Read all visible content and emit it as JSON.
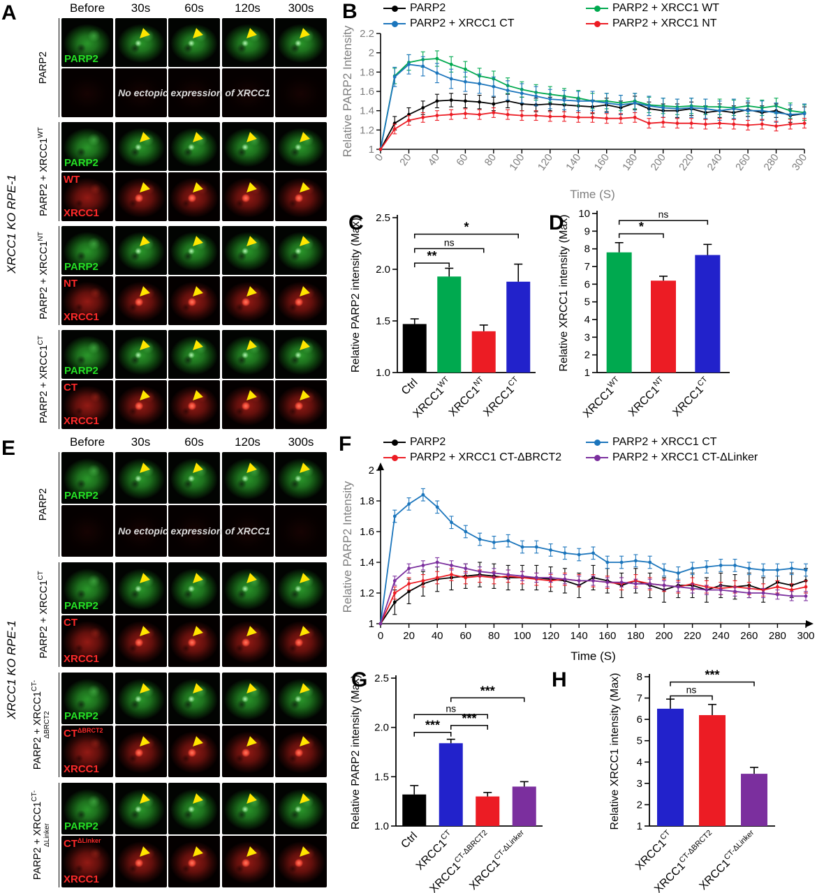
{
  "letters": {
    "A": "A",
    "B": "B",
    "C": "C",
    "D": "D",
    "E": "E",
    "F": "F",
    "G": "G",
    "H": "H"
  },
  "colors": {
    "black": "#000000",
    "green": "#00a94f",
    "red": "#ec1c24",
    "blue": "#1b75bc",
    "blue_bar": "#2222cb",
    "purple": "#7b2f9e",
    "axis_gray": "#7f7f7f",
    "arrow_yellow": "#ffe600"
  },
  "microscopy_columns": [
    "Before",
    "30s",
    "60s",
    "120s",
    "300s"
  ],
  "panelA": {
    "side_label": "XRCC1 KO RPE-1",
    "groups": [
      {
        "label": {
          "base": "PARP2",
          "sup": ""
        },
        "rows": [
          {
            "kind": "green",
            "tag": "PARP2",
            "arrows": [
              0,
              1,
              1,
              1,
              1
            ]
          },
          {
            "kind": "dark",
            "message": "No ectopic expression of XRCC1"
          }
        ]
      },
      {
        "label": {
          "base": "PARP2 + XRCC1",
          "sup": "WT"
        },
        "rows": [
          {
            "kind": "green",
            "tag": "PARP2",
            "arrows": [
              0,
              1,
              1,
              1,
              1
            ]
          },
          {
            "kind": "red",
            "tag_top": {
              "text": "WT",
              "sup": ""
            },
            "tag_bottom": "XRCC1",
            "arrows": [
              0,
              1,
              1,
              1,
              1
            ]
          }
        ]
      },
      {
        "label": {
          "base": "PARP2 + XRCC1",
          "sup": "NT"
        },
        "rows": [
          {
            "kind": "green",
            "tag": "PARP2",
            "arrows": [
              0,
              1,
              1,
              1,
              1
            ]
          },
          {
            "kind": "red",
            "tag_top": {
              "text": "NT",
              "sup": ""
            },
            "tag_bottom": "XRCC1",
            "arrows": [
              0,
              1,
              1,
              1,
              1
            ]
          }
        ]
      },
      {
        "label": {
          "base": "PARP2 + XRCC1",
          "sup": "CT"
        },
        "rows": [
          {
            "kind": "green",
            "tag": "PARP2",
            "arrows": [
              0,
              1,
              1,
              1,
              1
            ]
          },
          {
            "kind": "red",
            "tag_top": {
              "text": "CT",
              "sup": ""
            },
            "tag_bottom": "XRCC1",
            "arrows": [
              0,
              1,
              1,
              1,
              1
            ]
          }
        ]
      }
    ]
  },
  "panelE": {
    "side_label": "XRCC1 KO RPE-1",
    "groups": [
      {
        "label": {
          "base": "PARP2",
          "sup": ""
        },
        "rows": [
          {
            "kind": "green",
            "tag": "PARP2",
            "arrows": [
              0,
              1,
              1,
              1,
              1
            ]
          },
          {
            "kind": "dark",
            "message": "No ectopic expression of XRCC1"
          }
        ]
      },
      {
        "label": {
          "base": "PARP2 + XRCC1",
          "sup": "CT"
        },
        "rows": [
          {
            "kind": "green",
            "tag": "PARP2",
            "arrows": [
              0,
              1,
              1,
              1,
              1
            ]
          },
          {
            "kind": "red",
            "tag_top": {
              "text": "CT",
              "sup": ""
            },
            "tag_bottom": "XRCC1",
            "arrows": [
              0,
              1,
              1,
              1,
              1
            ]
          }
        ]
      },
      {
        "label": {
          "base": "PARP2 + XRCC1",
          "sup": "CT-ΔBRCT2"
        },
        "rows": [
          {
            "kind": "green",
            "tag": "PARP2",
            "arrows": [
              0,
              1,
              1,
              1,
              1
            ]
          },
          {
            "kind": "red",
            "tag_top": {
              "text": "CT",
              "sup": "ΔBRCT2"
            },
            "tag_bottom": "XRCC1",
            "arrows": [
              0,
              1,
              1,
              1,
              1
            ]
          }
        ]
      },
      {
        "label": {
          "base": "PARP2 + XRCC1",
          "sup": "CT-ΔLinker"
        },
        "rows": [
          {
            "kind": "green",
            "tag": "PARP2",
            "arrows": [
              0,
              1,
              1,
              1,
              1
            ]
          },
          {
            "kind": "red",
            "tag_top": {
              "text": "CT",
              "sup": "ΔLinker"
            },
            "tag_bottom": "XRCC1",
            "arrows": [
              0,
              1,
              1,
              1,
              1
            ]
          }
        ]
      }
    ]
  },
  "chart_data": [
    {
      "id": "B",
      "type": "line",
      "ylabel": "Relative PARP2 Intensity",
      "xlabel": "Time (S)",
      "ylim": [
        1,
        2.2
      ],
      "yticks": [
        1,
        1.2,
        1.4,
        1.6,
        1.8,
        2,
        2.2
      ],
      "xlim": [
        0,
        300
      ],
      "xtick_step": 20,
      "legend": [
        {
          "label": "PARP2",
          "color": "black"
        },
        {
          "label": "PARP2 + XRCC1 WT",
          "color": "green"
        },
        {
          "label": "PARP2 + XRCC1 CT",
          "color": "blue"
        },
        {
          "label": "PARP2 + XRCC1 NT",
          "color": "red"
        }
      ],
      "x": [
        0,
        10,
        20,
        30,
        40,
        50,
        60,
        70,
        80,
        90,
        100,
        110,
        120,
        130,
        140,
        150,
        160,
        170,
        180,
        190,
        200,
        210,
        220,
        230,
        240,
        250,
        260,
        270,
        280,
        290,
        300
      ],
      "series": [
        {
          "name": "PARP2",
          "color": "black",
          "err": 0.07,
          "values": [
            1.0,
            1.27,
            1.36,
            1.43,
            1.5,
            1.51,
            1.5,
            1.49,
            1.47,
            1.5,
            1.47,
            1.46,
            1.47,
            1.46,
            1.45,
            1.44,
            1.46,
            1.43,
            1.48,
            1.42,
            1.4,
            1.4,
            1.42,
            1.38,
            1.4,
            1.38,
            1.41,
            1.38,
            1.4,
            1.35,
            1.37
          ]
        },
        {
          "name": "PARP2 + XRCC1 WT",
          "color": "green",
          "err": 0.08,
          "values": [
            1.0,
            1.76,
            1.9,
            1.93,
            1.94,
            1.88,
            1.83,
            1.76,
            1.73,
            1.66,
            1.62,
            1.59,
            1.57,
            1.55,
            1.53,
            1.5,
            1.5,
            1.48,
            1.5,
            1.46,
            1.45,
            1.44,
            1.45,
            1.44,
            1.44,
            1.43,
            1.45,
            1.43,
            1.45,
            1.4,
            1.38
          ]
        },
        {
          "name": "PARP2 + XRCC1 CT",
          "color": "blue",
          "err": 0.1,
          "values": [
            1.0,
            1.75,
            1.88,
            1.86,
            1.79,
            1.73,
            1.7,
            1.68,
            1.65,
            1.61,
            1.58,
            1.55,
            1.52,
            1.51,
            1.5,
            1.5,
            1.48,
            1.46,
            1.48,
            1.45,
            1.43,
            1.42,
            1.43,
            1.42,
            1.4,
            1.42,
            1.4,
            1.4,
            1.38,
            1.36,
            1.37
          ]
        },
        {
          "name": "PARP2 + XRCC1 NT",
          "color": "red",
          "err": 0.05,
          "values": [
            1.0,
            1.21,
            1.3,
            1.33,
            1.35,
            1.36,
            1.37,
            1.36,
            1.38,
            1.36,
            1.35,
            1.35,
            1.34,
            1.34,
            1.33,
            1.33,
            1.32,
            1.32,
            1.33,
            1.27,
            1.28,
            1.27,
            1.27,
            1.26,
            1.27,
            1.26,
            1.25,
            1.26,
            1.24,
            1.26,
            1.27
          ]
        }
      ]
    },
    {
      "id": "C",
      "type": "bar",
      "ylabel": "Relative PARP2 intensity (Max)",
      "ylim": [
        1.0,
        2.5
      ],
      "yticks": [
        1.0,
        1.5,
        2.0,
        2.5
      ],
      "ytick_decimals": 1,
      "categories": [
        {
          "base": "Ctrl",
          "sup": ""
        },
        {
          "base": "XRCC1",
          "sup": "WT"
        },
        {
          "base": "XRCC1",
          "sup": "NT"
        },
        {
          "base": "XRCC1",
          "sup": "CT"
        }
      ],
      "values": [
        1.47,
        1.93,
        1.4,
        1.88
      ],
      "errors": [
        0.05,
        0.08,
        0.06,
        0.17
      ],
      "bar_colors": [
        "black",
        "green",
        "red",
        "blue_bar"
      ],
      "brackets": [
        {
          "from": 0,
          "to": 1,
          "label": "**",
          "y": 2.06
        },
        {
          "from": 0,
          "to": 2,
          "label": "ns",
          "y": 2.2
        },
        {
          "from": 0,
          "to": 3,
          "label": "*",
          "y": 2.34
        }
      ]
    },
    {
      "id": "D",
      "type": "bar",
      "ylabel": "Relative XRCC1 intensity (Max)",
      "ylim": [
        1,
        10
      ],
      "yticks": [
        1,
        2,
        3,
        4,
        5,
        6,
        7,
        8,
        9,
        10
      ],
      "ytick_decimals": 0,
      "categories": [
        {
          "base": "XRCC1",
          "sup": "WT"
        },
        {
          "base": "XRCC1",
          "sup": "NT"
        },
        {
          "base": "XRCC1",
          "sup": "CT"
        }
      ],
      "values": [
        7.8,
        6.2,
        7.65
      ],
      "errors": [
        0.55,
        0.25,
        0.6
      ],
      "bar_colors": [
        "green",
        "red",
        "blue_bar"
      ],
      "brackets": [
        {
          "from": 0,
          "to": 1,
          "label": "*",
          "y": 8.85
        },
        {
          "from": 0,
          "to": 2,
          "label": "ns",
          "y": 9.6
        }
      ]
    },
    {
      "id": "F",
      "type": "line",
      "ylabel": "Relative PARP2 Intensity",
      "xlabel": "Time (S)",
      "ylim": [
        1,
        2
      ],
      "yticks": [
        1,
        1.2,
        1.4,
        1.6,
        1.8,
        2
      ],
      "xlim": [
        0,
        300
      ],
      "xtick_step": 20,
      "legend": [
        {
          "label": "PARP2",
          "color": "black"
        },
        {
          "label": "PARP2 + XRCC1 CT",
          "color": "blue"
        },
        {
          "label": "PARP2 + XRCC1 CT-ΔBRCT2",
          "color": "red"
        },
        {
          "label": "PARP2 + XRCC1 CT-ΔLinker",
          "color": "purple"
        }
      ],
      "x": [
        0,
        10,
        20,
        30,
        40,
        50,
        60,
        70,
        80,
        90,
        100,
        110,
        120,
        130,
        140,
        150,
        160,
        170,
        180,
        190,
        200,
        210,
        220,
        230,
        240,
        250,
        260,
        270,
        280,
        290,
        300
      ],
      "series": [
        {
          "name": "PARP2",
          "color": "black",
          "err": 0.08,
          "values": [
            1.0,
            1.14,
            1.21,
            1.26,
            1.29,
            1.3,
            1.31,
            1.32,
            1.31,
            1.3,
            1.3,
            1.3,
            1.29,
            1.28,
            1.25,
            1.3,
            1.28,
            1.25,
            1.28,
            1.25,
            1.22,
            1.25,
            1.25,
            1.22,
            1.25,
            1.24,
            1.25,
            1.22,
            1.27,
            1.25,
            1.28
          ]
        },
        {
          "name": "PARP2 + XRCC1 CT",
          "color": "blue",
          "err": 0.04,
          "values": [
            1.0,
            1.7,
            1.78,
            1.84,
            1.76,
            1.66,
            1.6,
            1.55,
            1.53,
            1.54,
            1.5,
            1.5,
            1.48,
            1.46,
            1.45,
            1.46,
            1.4,
            1.4,
            1.41,
            1.4,
            1.35,
            1.33,
            1.36,
            1.37,
            1.38,
            1.38,
            1.36,
            1.35,
            1.35,
            1.36,
            1.35
          ]
        },
        {
          "name": "PARP2 + XRCC1 CT-ΔBRCT2",
          "color": "red",
          "err": 0.04,
          "values": [
            1.0,
            1.2,
            1.26,
            1.28,
            1.3,
            1.32,
            1.3,
            1.31,
            1.3,
            1.31,
            1.3,
            1.29,
            1.28,
            1.29,
            1.28,
            1.28,
            1.27,
            1.26,
            1.28,
            1.26,
            1.25,
            1.24,
            1.26,
            1.24,
            1.23,
            1.24,
            1.23,
            1.22,
            1.24,
            1.22,
            1.24
          ]
        },
        {
          "name": "PARP2 + XRCC1 CT-ΔLinker",
          "color": "purple",
          "err": 0.03,
          "values": [
            1.0,
            1.28,
            1.36,
            1.38,
            1.4,
            1.38,
            1.36,
            1.34,
            1.33,
            1.32,
            1.31,
            1.3,
            1.3,
            1.29,
            1.28,
            1.28,
            1.27,
            1.27,
            1.26,
            1.26,
            1.25,
            1.24,
            1.23,
            1.22,
            1.22,
            1.21,
            1.2,
            1.2,
            1.19,
            1.18,
            1.18
          ]
        }
      ]
    },
    {
      "id": "G",
      "type": "bar",
      "ylabel": "Relative PARP2 intensity (Max)",
      "ylim": [
        1.0,
        2.5
      ],
      "yticks": [
        1.0,
        1.5,
        2.0,
        2.5
      ],
      "ytick_decimals": 1,
      "categories": [
        {
          "base": "Ctrl",
          "sup": ""
        },
        {
          "base": "XRCC1",
          "sup": "CT"
        },
        {
          "base": "XRCC1",
          "sup": "CT-ΔBRCT2"
        },
        {
          "base": "XRCC1",
          "sup": "CT-ΔLinker"
        }
      ],
      "values": [
        1.32,
        1.84,
        1.3,
        1.4
      ],
      "errors": [
        0.09,
        0.04,
        0.04,
        0.05
      ],
      "bar_colors": [
        "black",
        "blue_bar",
        "red",
        "purple"
      ],
      "brackets": [
        {
          "from": 0,
          "to": 1,
          "label": "***",
          "y": 1.95
        },
        {
          "from": 1,
          "to": 2,
          "label": "***",
          "y": 2.02
        },
        {
          "from": 0,
          "to": 2,
          "label": "ns",
          "y": 2.13
        },
        {
          "from": 1,
          "to": 3,
          "label": "***",
          "y": 2.3
        }
      ]
    },
    {
      "id": "H",
      "type": "bar",
      "ylabel": "Relative XRCC1 intensity (Max)",
      "ylim": [
        1,
        8
      ],
      "yticks": [
        1,
        2,
        3,
        4,
        5,
        6,
        7,
        8
      ],
      "ytick_decimals": 0,
      "categories": [
        {
          "base": "XRCC1",
          "sup": "CT"
        },
        {
          "base": "XRCC1",
          "sup": "CT-ΔBRCT2"
        },
        {
          "base": "XRCC1",
          "sup": "CT-ΔLinker"
        }
      ],
      "values": [
        6.5,
        6.2,
        3.45
      ],
      "errors": [
        0.45,
        0.5,
        0.3
      ],
      "bar_colors": [
        "blue_bar",
        "red",
        "purple"
      ],
      "brackets": [
        {
          "from": 0,
          "to": 1,
          "label": "ns",
          "y": 7.1
        },
        {
          "from": 0,
          "to": 2,
          "label": "***",
          "y": 7.75
        }
      ]
    }
  ]
}
